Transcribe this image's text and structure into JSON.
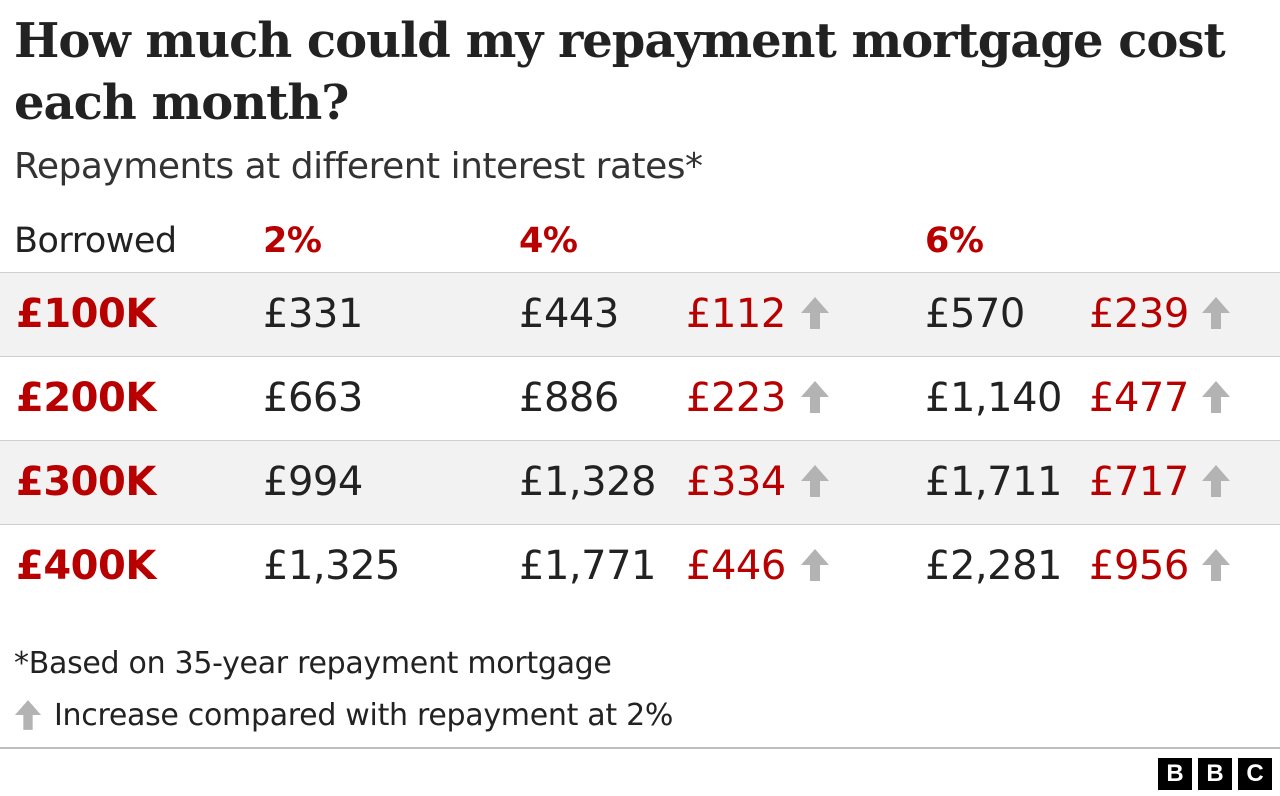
{
  "title": "How much could my repayment mortgage cost each month?",
  "subtitle": "Repayments at different interest rates*",
  "colors": {
    "accent": "#b80000",
    "text": "#222222",
    "arrow": "#b3b3b3",
    "shade": "#f2f2f2"
  },
  "headers": {
    "borrowed": "Borrowed",
    "rate_2": "2%",
    "rate_4": "4%",
    "rate_6": "6%"
  },
  "rows": [
    {
      "borrowed": "£100K",
      "r2": "£331",
      "r4": "£443",
      "inc4": "£112",
      "r6": "£570",
      "inc6": "£239"
    },
    {
      "borrowed": "£200K",
      "r2": "£663",
      "r4": "£886",
      "inc4": "£223",
      "r6": "£1,140",
      "inc6": "£477"
    },
    {
      "borrowed": "£300K",
      "r2": "£994",
      "r4": "£1,328",
      "inc4": "£334",
      "r6": "£1,711",
      "inc6": "£717"
    },
    {
      "borrowed": "£400K",
      "r2": "£1,325",
      "r4": "£1,771",
      "inc4": "£446",
      "r6": "£2,281",
      "inc6": "£956"
    }
  ],
  "footnote": "*Based on 35-year repayment mortgage",
  "legend": {
    "icon": "up-arrow-icon",
    "text": "Increase compared with repayment at 2%"
  },
  "logo": [
    "B",
    "B",
    "C"
  ],
  "chart_data": {
    "type": "table",
    "title": "How much could my repayment mortgage cost each month?",
    "subtitle": "Repayments at different interest rates*",
    "columns": [
      "Borrowed",
      "2%",
      "4%",
      "4% increase",
      "6%",
      "6% increase"
    ],
    "rows": [
      [
        "£100K",
        331,
        443,
        112,
        570,
        239
      ],
      [
        "£200K",
        663,
        886,
        223,
        1140,
        477
      ],
      [
        "£300K",
        994,
        1328,
        334,
        1711,
        717
      ],
      [
        "£400K",
        1325,
        1771,
        446,
        2281,
        956
      ]
    ]
  }
}
